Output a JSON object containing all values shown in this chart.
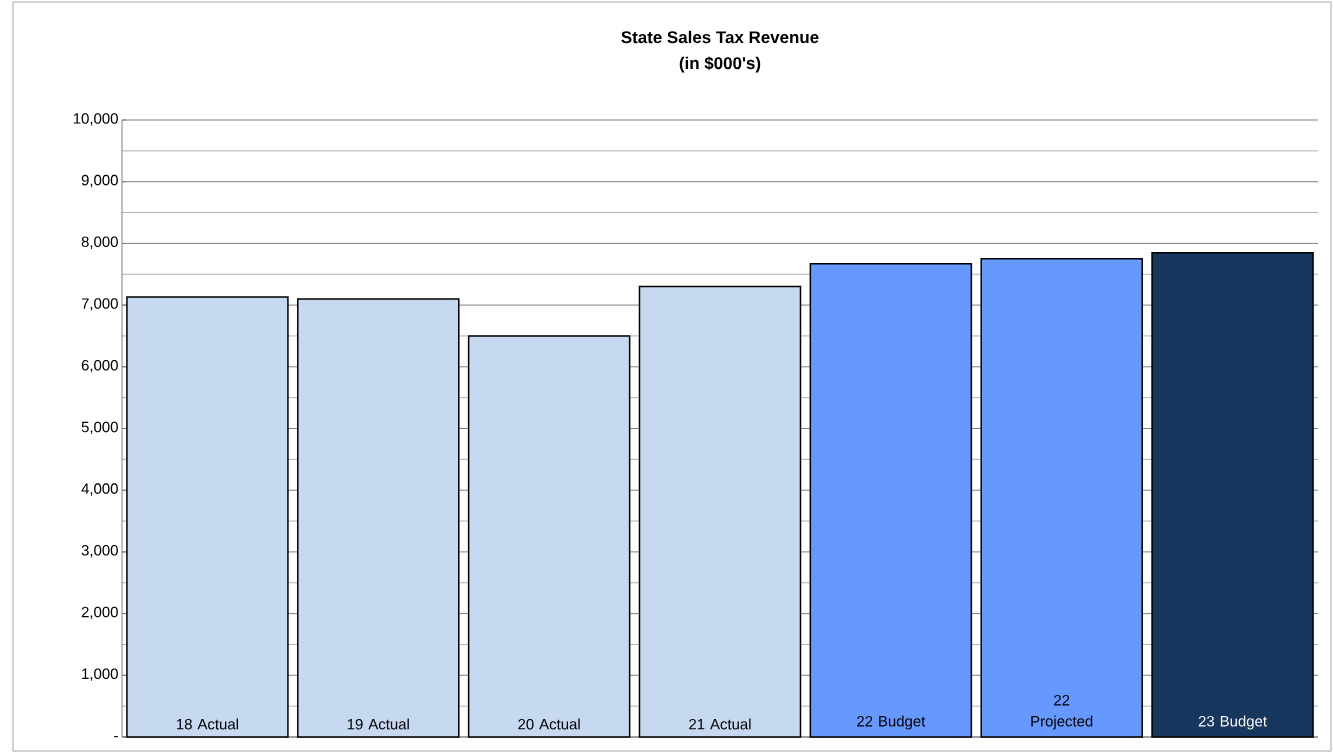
{
  "chart_data": {
    "type": "bar",
    "title": "State Sales Tax Revenue",
    "subtitle": "(in $000's)",
    "categories": [
      "18 Actual",
      "19 Actual",
      "20 Actual",
      "21 Actual",
      "22 Budget",
      "22 Projected",
      "23 Budget"
    ],
    "values": [
      7130,
      7100,
      6500,
      7300,
      7670,
      7750,
      7850
    ],
    "colors": [
      "#c6d9f1",
      "#c6d9f1",
      "#c6d9f1",
      "#c6d9f1",
      "#6699ff",
      "#6699ff",
      "#17375e"
    ],
    "ylim": [
      0,
      10000
    ],
    "yticks": [
      {
        "value": 0,
        "label": "-"
      },
      {
        "value": 1000,
        "label": "1,000"
      },
      {
        "value": 2000,
        "label": "2,000"
      },
      {
        "value": 3000,
        "label": "3,000"
      },
      {
        "value": 4000,
        "label": "4,000"
      },
      {
        "value": 5000,
        "label": "5,000"
      },
      {
        "value": 6000,
        "label": "6,000"
      },
      {
        "value": 7000,
        "label": "7,000"
      },
      {
        "value": 8000,
        "label": "8,000"
      },
      {
        "value": 9000,
        "label": "9,000"
      },
      {
        "value": 10000,
        "label": "10,000"
      }
    ],
    "grid": "y"
  }
}
